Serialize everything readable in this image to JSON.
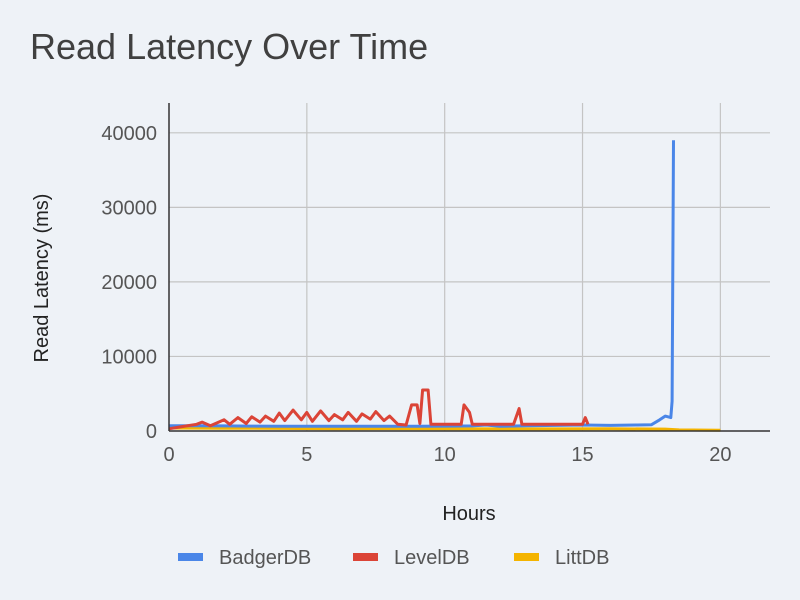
{
  "chart_data": {
    "type": "line",
    "title": "Read Latency Over Time",
    "xlabel": "Hours",
    "ylabel": "Read Latency (ms)",
    "xlim": [
      0,
      21.8
    ],
    "ylim": [
      0,
      44000
    ],
    "xticks": [
      0,
      5,
      10,
      15,
      20
    ],
    "yticks": [
      0,
      10000,
      20000,
      30000,
      40000
    ],
    "grid": true,
    "legend_position": "bottom",
    "series": [
      {
        "name": "BadgerDB",
        "color": "#4a86e8",
        "points": [
          [
            0,
            700
          ],
          [
            1,
            700
          ],
          [
            2,
            680
          ],
          [
            3,
            660
          ],
          [
            4,
            650
          ],
          [
            5,
            640
          ],
          [
            6,
            650
          ],
          [
            7,
            640
          ],
          [
            8,
            640
          ],
          [
            9,
            650
          ],
          [
            10,
            660
          ],
          [
            11,
            680
          ],
          [
            11.5,
            800
          ],
          [
            12,
            640
          ],
          [
            13,
            700
          ],
          [
            14,
            750
          ],
          [
            15,
            800
          ],
          [
            16,
            750
          ],
          [
            17,
            800
          ],
          [
            17.5,
            850
          ],
          [
            17.8,
            1500
          ],
          [
            18.0,
            2000
          ],
          [
            18.2,
            1800
          ],
          [
            18.25,
            4000
          ],
          [
            18.3,
            39000
          ]
        ]
      },
      {
        "name": "LevelDB",
        "color": "#db4437",
        "points": [
          [
            0,
            300
          ],
          [
            0.5,
            600
          ],
          [
            1,
            900
          ],
          [
            1.2,
            1200
          ],
          [
            1.5,
            700
          ],
          [
            2,
            1500
          ],
          [
            2.2,
            900
          ],
          [
            2.5,
            1800
          ],
          [
            2.8,
            1000
          ],
          [
            3,
            1900
          ],
          [
            3.3,
            1200
          ],
          [
            3.5,
            2000
          ],
          [
            3.8,
            1300
          ],
          [
            4,
            2400
          ],
          [
            4.2,
            1400
          ],
          [
            4.5,
            2800
          ],
          [
            4.8,
            1500
          ],
          [
            5,
            2500
          ],
          [
            5.2,
            1300
          ],
          [
            5.5,
            2700
          ],
          [
            5.8,
            1400
          ],
          [
            6,
            2200
          ],
          [
            6.3,
            1500
          ],
          [
            6.5,
            2500
          ],
          [
            6.8,
            1300
          ],
          [
            7,
            2300
          ],
          [
            7.3,
            1600
          ],
          [
            7.5,
            2600
          ],
          [
            7.8,
            1400
          ],
          [
            8,
            2000
          ],
          [
            8.3,
            900
          ],
          [
            8.6,
            800
          ],
          [
            8.8,
            3500
          ],
          [
            9,
            3500
          ],
          [
            9.1,
            1000
          ],
          [
            9.2,
            5500
          ],
          [
            9.4,
            5500
          ],
          [
            9.5,
            900
          ],
          [
            10,
            900
          ],
          [
            10.6,
            900
          ],
          [
            10.7,
            3500
          ],
          [
            10.9,
            2500
          ],
          [
            11,
            900
          ],
          [
            12.5,
            900
          ],
          [
            12.7,
            3000
          ],
          [
            12.8,
            900
          ],
          [
            15,
            900
          ],
          [
            15.1,
            1800
          ],
          [
            15.2,
            900
          ]
        ]
      },
      {
        "name": "LittDB",
        "color": "#f4b400",
        "points": [
          [
            0,
            400
          ],
          [
            2,
            380
          ],
          [
            4,
            350
          ],
          [
            6,
            300
          ],
          [
            8,
            320
          ],
          [
            10,
            300
          ],
          [
            12,
            280
          ],
          [
            14,
            280
          ],
          [
            16,
            300
          ],
          [
            18,
            250
          ],
          [
            18.5,
            150
          ],
          [
            20,
            100
          ]
        ]
      }
    ]
  }
}
